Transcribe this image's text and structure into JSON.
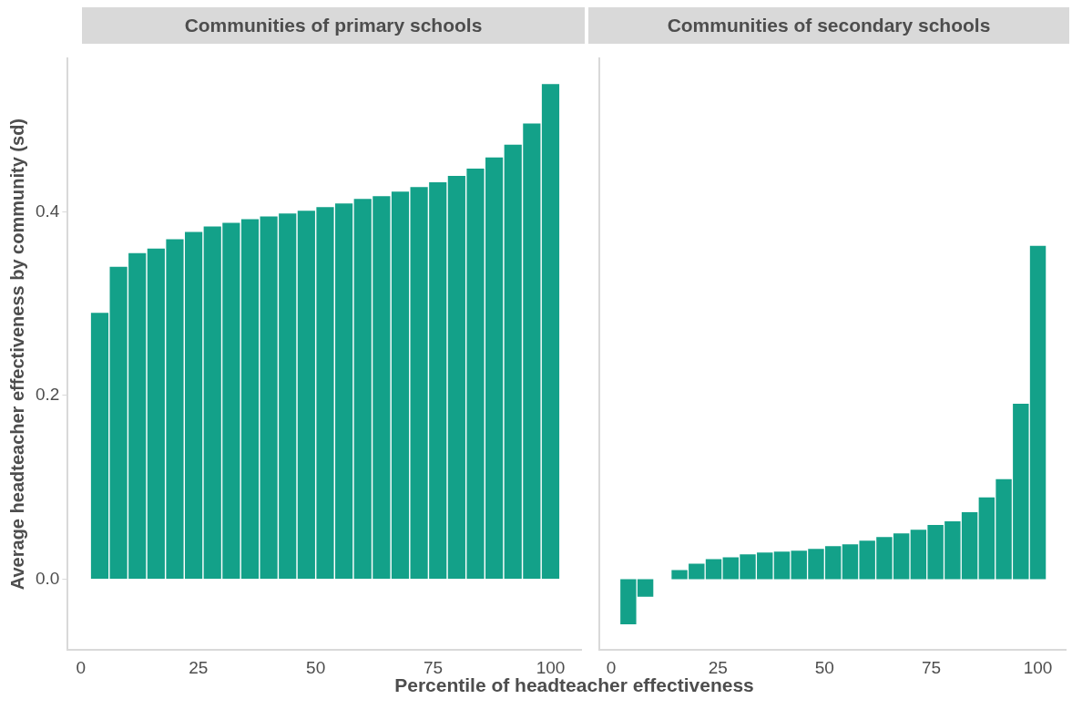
{
  "chart_data": [
    {
      "type": "bar",
      "title": "Communities of primary schools",
      "xlabel": "Percentile of headteacher effectiveness",
      "ylabel": "Average headteacher effectiveness by community (sd)",
      "color": "#13a189",
      "x": [
        4,
        8,
        12,
        16,
        20,
        24,
        28,
        32,
        36,
        40,
        44,
        48,
        52,
        56,
        60,
        64,
        68,
        72,
        76,
        80,
        84,
        88,
        92,
        96,
        100
      ],
      "values": [
        0.29,
        0.34,
        0.355,
        0.36,
        0.37,
        0.378,
        0.384,
        0.388,
        0.392,
        0.395,
        0.398,
        0.401,
        0.405,
        0.409,
        0.414,
        0.417,
        0.422,
        0.427,
        0.432,
        0.439,
        0.447,
        0.459,
        0.473,
        0.496,
        0.539
      ],
      "xlim": [
        -2.8,
        106.5
      ],
      "xticks": [
        0,
        25,
        50,
        75,
        100
      ],
      "ylim": [
        -0.077,
        0.567
      ],
      "yticks": [
        {
          "value": 0,
          "label": "0.0"
        },
        {
          "value": 0.2,
          "label": "0.2"
        },
        {
          "value": 0.4,
          "label": "0.4"
        }
      ]
    },
    {
      "type": "bar",
      "title": "Communities of secondary schools",
      "color": "#13a189",
      "x": [
        4,
        8,
        12,
        16,
        20,
        24,
        28,
        32,
        36,
        40,
        44,
        48,
        52,
        56,
        60,
        64,
        68,
        72,
        76,
        80,
        84,
        88,
        92,
        96,
        100
      ],
      "values": [
        -0.049,
        -0.019,
        0.0,
        0.01,
        0.017,
        0.022,
        0.024,
        0.027,
        0.029,
        0.03,
        0.031,
        0.033,
        0.036,
        0.038,
        0.042,
        0.046,
        0.05,
        0.054,
        0.059,
        0.063,
        0.073,
        0.089,
        0.109,
        0.191,
        0.363
      ],
      "xlim": [
        -2.8,
        106.5
      ],
      "xticks": [
        0,
        25,
        50,
        75,
        100
      ],
      "ylim": [
        -0.077,
        0.567
      ],
      "tick_labels": "x"
    }
  ]
}
